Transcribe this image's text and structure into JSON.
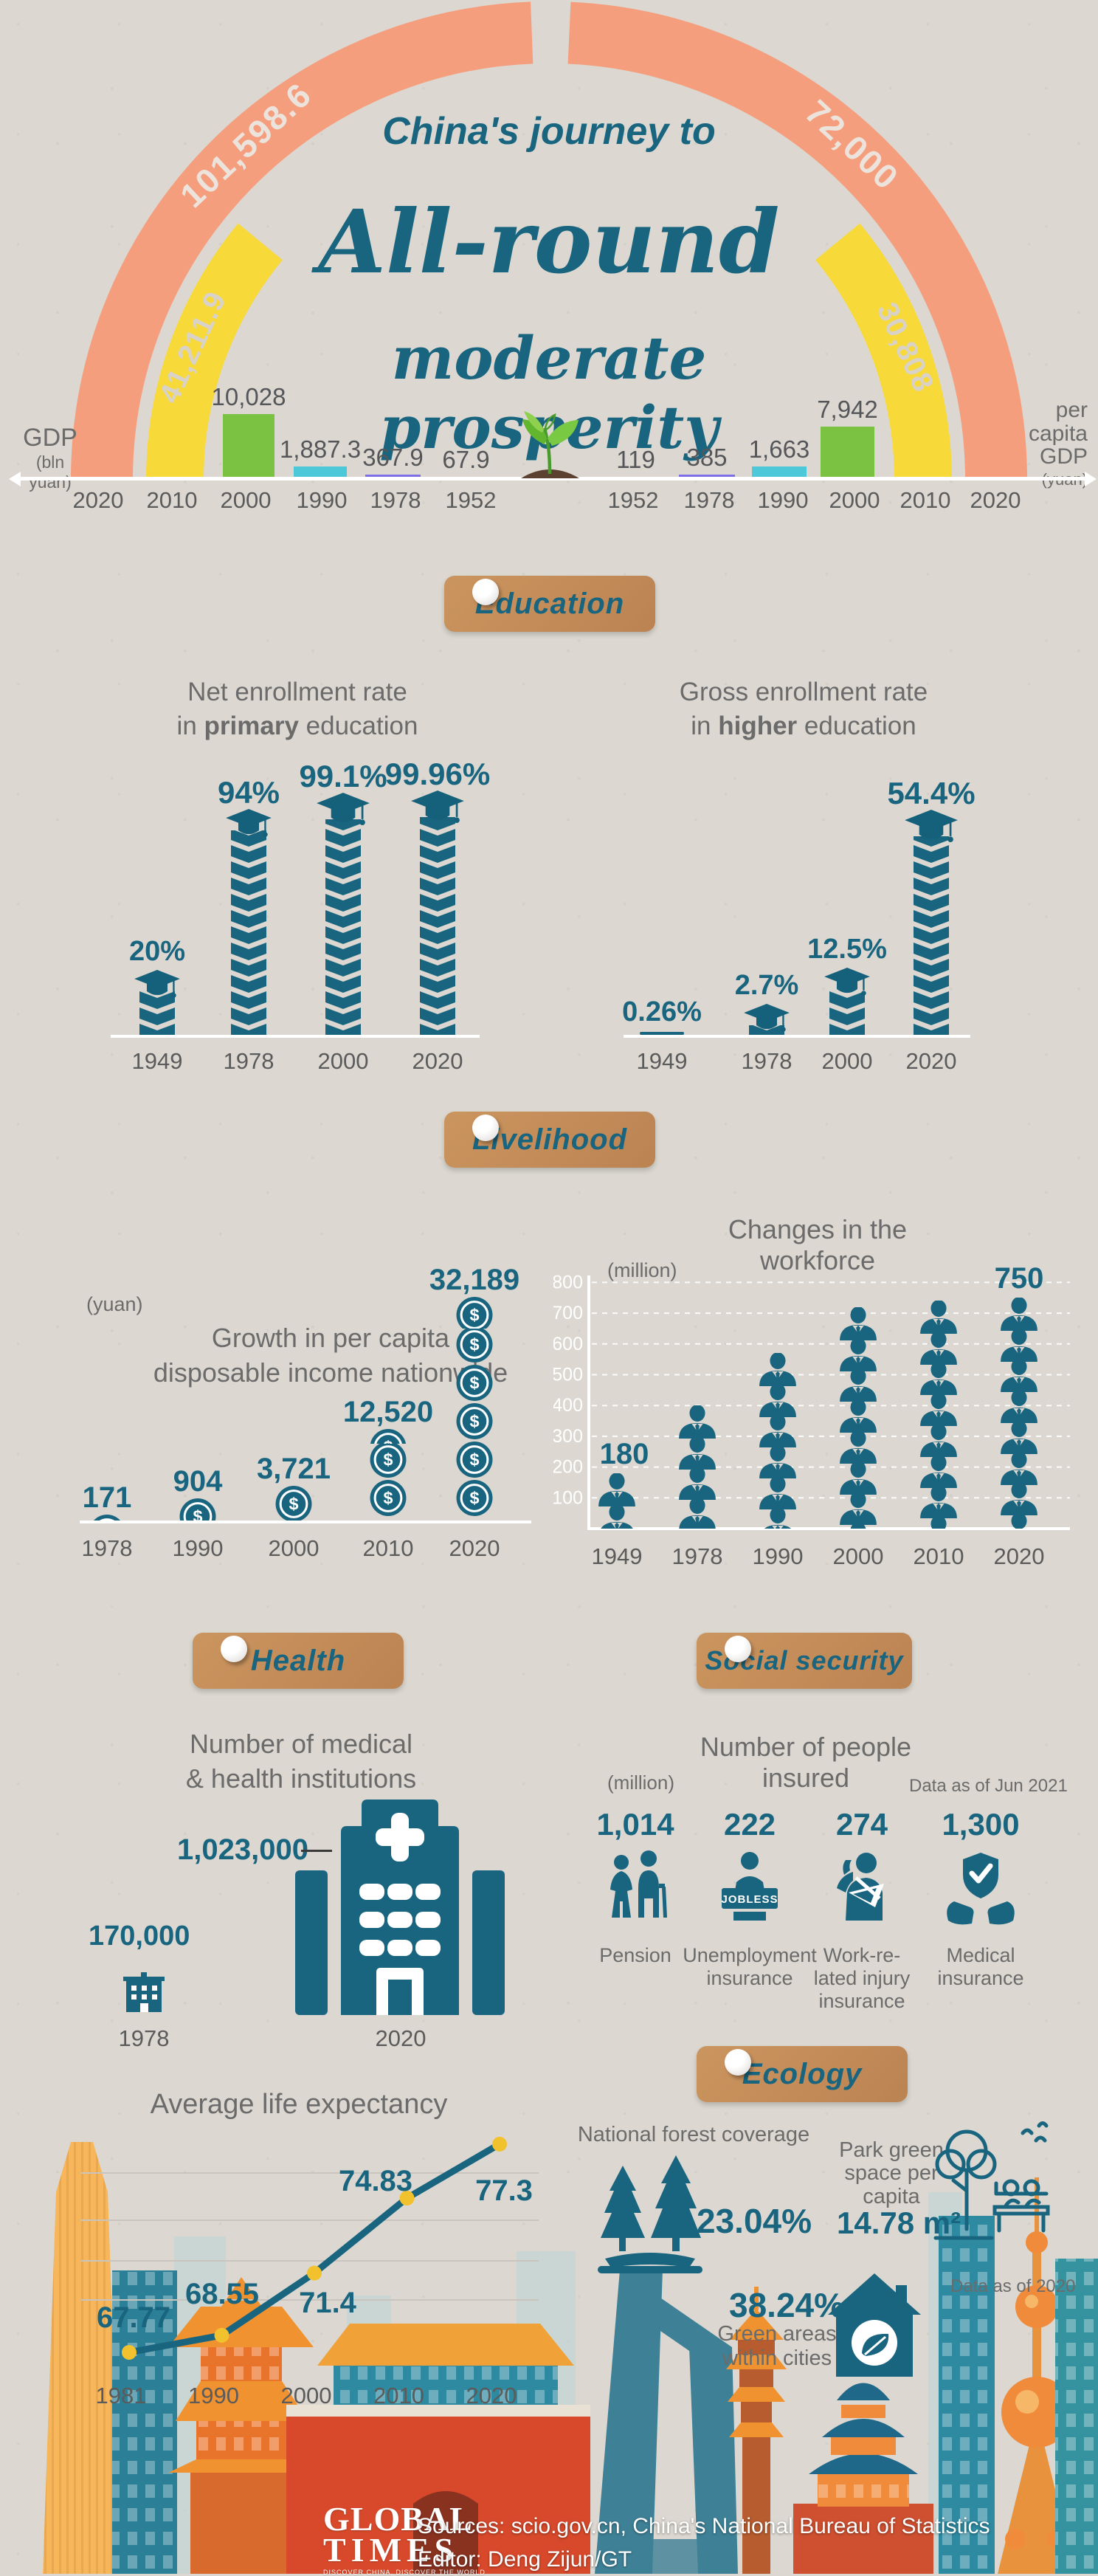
{
  "palette": {
    "teal": "#19657f",
    "teal_dark": "#15607a",
    "salmon": "#f59e7d",
    "yellow": "#f7d93a",
    "green": "#7cc242",
    "cyan": "#4cc8d9",
    "purple": "#7e6ee8",
    "gray_bar": "#9b9b9b",
    "text_gray": "#6b6b6b",
    "label_gray": "#55565a",
    "tag_tan": "#c48d5f",
    "dot_yellow": "#f2c12e",
    "paper": "#dcd8d1"
  },
  "header": {
    "title1": "China's journey to",
    "title2": "All-round",
    "title3": "moderate prosperity",
    "left_axis_title": "GDP",
    "left_axis_unit": "(bln yuan)",
    "right_axis_lines": [
      "per",
      "capita",
      "GDP"
    ],
    "right_axis_unit": "(yuan)",
    "arc_left_outer": "101,598.6",
    "arc_left_inner": "41,211.9",
    "arc_right_outer": "72,000",
    "arc_right_inner": "30,808",
    "left_bars": [
      {
        "year": "2000",
        "label": "10,028"
      },
      {
        "year": "1990",
        "label": "1,887.3"
      },
      {
        "year": "1978",
        "label": "367.9"
      },
      {
        "year": "1952",
        "label": "67.9"
      }
    ],
    "right_bars": [
      {
        "year": "1952",
        "label": "119"
      },
      {
        "year": "1978",
        "label": "385"
      },
      {
        "year": "1990",
        "label": "1,663"
      },
      {
        "year": "2000",
        "label": "7,942"
      }
    ],
    "years_left": [
      "2020",
      "2010",
      "2000",
      "1990",
      "1978",
      "1952"
    ],
    "years_right": [
      "1952",
      "1978",
      "1990",
      "2000",
      "2010",
      "2020"
    ]
  },
  "education": {
    "tag": "Education",
    "left_title1": "Net enrollment rate",
    "left_title2_pre": "in ",
    "left_title2_bold": "primary",
    "left_title2_post": " education",
    "right_title1": "Gross enrollment rate",
    "right_title2_pre": "in ",
    "right_title2_bold": "higher",
    "right_title2_post": " education"
  },
  "livelihood": {
    "tag": "Livelihood",
    "left_title1": "Growth in per capita",
    "left_title2": "disposable income nationwide",
    "left_unit": "(yuan)",
    "right_title": "Changes in the workforce",
    "right_unit": "(million)"
  },
  "health": {
    "tag": "Health",
    "title1": "Number of medical",
    "title2": "& health institutions"
  },
  "social": {
    "tag": "Social security",
    "title": "Number of people insured",
    "unit": "(million)",
    "note": "Data as of Jun 2021",
    "items": [
      {
        "value": "1,014",
        "icon": "pension-icon",
        "lines": [
          "Pension"
        ]
      },
      {
        "value": "222",
        "icon": "jobless-icon",
        "lines": [
          "Unemployment",
          "insurance"
        ]
      },
      {
        "value": "274",
        "icon": "injury-icon",
        "lines": [
          "Work-re-",
          "lated injury",
          "insurance"
        ]
      },
      {
        "value": "1,300",
        "icon": "medical-shield-icon",
        "lines": [
          "Medical",
          "insurance"
        ]
      }
    ]
  },
  "ecology": {
    "tag": "Ecology",
    "forest_label": "National forest coverage",
    "forest_value": "23.04%",
    "park_label_lines": [
      "Park green",
      "space per",
      "capita"
    ],
    "park_value": "14.78 m²",
    "note": "Data as of 2020",
    "green_value": "38.24%",
    "green_label_lines": [
      "Green areas",
      "within cities"
    ]
  },
  "life": {
    "title": "Average life expectancy"
  },
  "footer": {
    "brand_line1": "GLOBAL",
    "brand_line2": "TIMES",
    "brand_tagline": "DISCOVER CHINA, DISCOVER THE WORLD",
    "sources": "Sources: scio.gov.cn, China's National Bureau of Statistics",
    "editor": "Editor: Deng Zijun/GT"
  },
  "chart_data": [
    {
      "id": "gdp_gauge",
      "type": "bar",
      "title": "China's journey to All-round moderate prosperity",
      "categories": [
        "1952",
        "1978",
        "1990",
        "2000",
        "2010",
        "2020"
      ],
      "series": [
        {
          "name": "GDP (bln yuan)",
          "values": [
            67.9,
            367.9,
            1887.3,
            10028,
            41211.9,
            101598.6
          ]
        },
        {
          "name": "per capita GDP (yuan)",
          "values": [
            119,
            385,
            1663,
            7942,
            30808,
            72000
          ]
        }
      ],
      "layout": "mirrored half-donut gauge; 2020 = outer salmon arc, 2010 = inner yellow arc, earlier years shown as mini bars at the baseline"
    },
    {
      "id": "primary_enrollment",
      "type": "bar",
      "title": "Net enrollment rate in primary education",
      "unit": "%",
      "categories": [
        "1949",
        "1978",
        "2000",
        "2020"
      ],
      "values": [
        20,
        94,
        99.1,
        99.96
      ],
      "labels": [
        "20%",
        "94%",
        "99.1%",
        "99.96%"
      ],
      "layout": "chevron-stack pictogram bars topped with graduation caps"
    },
    {
      "id": "higher_enrollment",
      "type": "bar",
      "title": "Gross enrollment rate in higher education",
      "unit": "%",
      "categories": [
        "1949",
        "1978",
        "2000",
        "2020"
      ],
      "values": [
        0.26,
        2.7,
        12.5,
        54.4
      ],
      "labels": [
        "0.26%",
        "2.7%",
        "12.5%",
        "54.4%"
      ],
      "layout": "chevron-stack pictogram bars topped with graduation caps"
    },
    {
      "id": "income",
      "type": "bar",
      "title": "Growth in per capita disposable income nationwide",
      "ylabel": "(yuan)",
      "categories": [
        "1978",
        "1990",
        "2000",
        "2010",
        "2020"
      ],
      "values": [
        171,
        904,
        3721,
        12520,
        32189
      ],
      "labels": [
        "171",
        "904",
        "3,721",
        "12,520",
        "32,189"
      ],
      "icon": "coin",
      "icon_units": [
        0.18,
        0.6,
        0.93,
        2.4,
        5.85
      ]
    },
    {
      "id": "workforce",
      "type": "bar",
      "title": "Changes in the workforce",
      "ylabel": "(million)",
      "categories": [
        "1949",
        "1978",
        "1990",
        "2000",
        "2010",
        "2020"
      ],
      "values": [
        180,
        400,
        570,
        720,
        740,
        750
      ],
      "labels": [
        "180",
        "",
        "",
        "",
        "",
        "750"
      ],
      "note": "only 1949 and 2020 carry data labels; intermediate values estimated from icon heights",
      "ylim": [
        0,
        800
      ],
      "yticks": [
        100,
        200,
        300,
        400,
        500,
        600,
        700,
        800
      ],
      "icon": "person",
      "grid": true
    },
    {
      "id": "medical_institutions",
      "type": "bar",
      "title": "Number of medical & health institutions",
      "categories": [
        "1978",
        "2020"
      ],
      "values": [
        170000,
        1023000
      ],
      "labels": [
        "170,000",
        "1,023,000"
      ],
      "icon": "hospital"
    },
    {
      "id": "people_insured",
      "type": "bar",
      "title": "Number of people insured",
      "unit": "million",
      "note": "Data as of Jun 2021",
      "categories": [
        "Pension",
        "Unemployment insurance",
        "Work-related injury insurance",
        "Medical insurance"
      ],
      "values": [
        1014,
        222,
        274,
        1300
      ],
      "labels": [
        "1,014",
        "222",
        "274",
        "1,300"
      ]
    },
    {
      "id": "life_expectancy",
      "type": "line",
      "title": "Average life expectancy",
      "categories": [
        "1981",
        "1990",
        "2000",
        "2010",
        "2020"
      ],
      "values": [
        67.77,
        68.55,
        71.4,
        74.83,
        77.3
      ],
      "labels": [
        "67.77",
        "68.55",
        "71.4",
        "74.83",
        "77.3"
      ],
      "grid": true,
      "legend_position": "none"
    },
    {
      "id": "ecology_indicators",
      "type": "table",
      "note": "Data as of 2020",
      "items": [
        {
          "label": "National forest coverage",
          "value": "23.04%"
        },
        {
          "label": "Park green space per capita",
          "value": "14.78 m²"
        },
        {
          "label": "Green areas within cities",
          "value": "38.24%"
        }
      ]
    }
  ]
}
